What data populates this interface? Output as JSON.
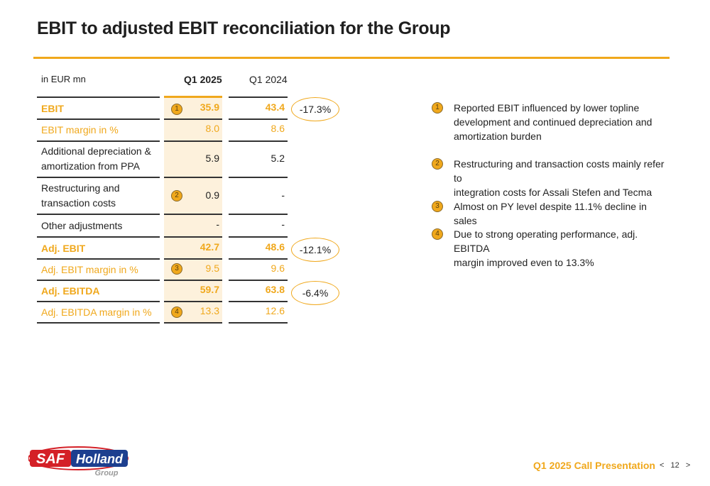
{
  "title": "EBIT to adjusted EBIT reconciliation for the Group",
  "table": {
    "unit": "in EUR mn",
    "col1": "Q1 2025",
    "col2": "Q1 2024",
    "rows": [
      {
        "label": "EBIT",
        "v1": "35.9",
        "v2": "43.4",
        "badge": "1"
      },
      {
        "label": "EBIT margin in %",
        "v1": "8.0",
        "v2": "8.6"
      },
      {
        "label_l1": "Additional depreciation &",
        "label_l2": "amortization from PPA",
        "v1": "5.9",
        "v2": "5.2"
      },
      {
        "label_l1": "Restructuring and",
        "label_l2": "transaction costs",
        "v1": "0.9",
        "v2": "-",
        "badge": "2"
      },
      {
        "label": "Other adjustments",
        "v1": "-",
        "v2": "-"
      },
      {
        "label": "Adj. EBIT",
        "v1": "42.7",
        "v2": "48.6"
      },
      {
        "label": "Adj. EBIT margin in %",
        "v1": "9.5",
        "v2": "9.6",
        "badge": "3"
      },
      {
        "label": "Adj. EBITDA",
        "v1": "59.7",
        "v2": "63.8"
      },
      {
        "label": "Adj. EBITDA margin in %",
        "v1": "13.3",
        "v2": "12.6",
        "badge": "4"
      }
    ],
    "changes": [
      "-17.3%",
      "-12.1%",
      "-6.4%"
    ]
  },
  "notes": [
    {
      "num": "1",
      "lines": [
        "Reported EBIT influenced by lower topline",
        "development and continued depreciation and",
        "amortization burden"
      ]
    },
    {
      "num": "2",
      "lines": [
        "Restructuring and transaction costs mainly refer to",
        "integration costs for Assali Stefen and Tecma"
      ]
    },
    {
      "num": "3",
      "lines": [
        "Almost on PY level despite 11.1% decline in sales"
      ]
    },
    {
      "num": "4",
      "lines": [
        "Due to strong operating performance, adj. EBITDA",
        "margin improved even to 13.3%"
      ]
    }
  ],
  "logo": {
    "brand_a": "SAF",
    "brand_b": "Holland",
    "sub": "Group"
  },
  "footer": {
    "title": "Q1 2025 Call Presentation",
    "page": "12",
    "prev": "<",
    "next": ">"
  },
  "colors": {
    "accent": "#f0a81c",
    "logo_red": "#d42027",
    "logo_blue": "#1d3f8f"
  }
}
